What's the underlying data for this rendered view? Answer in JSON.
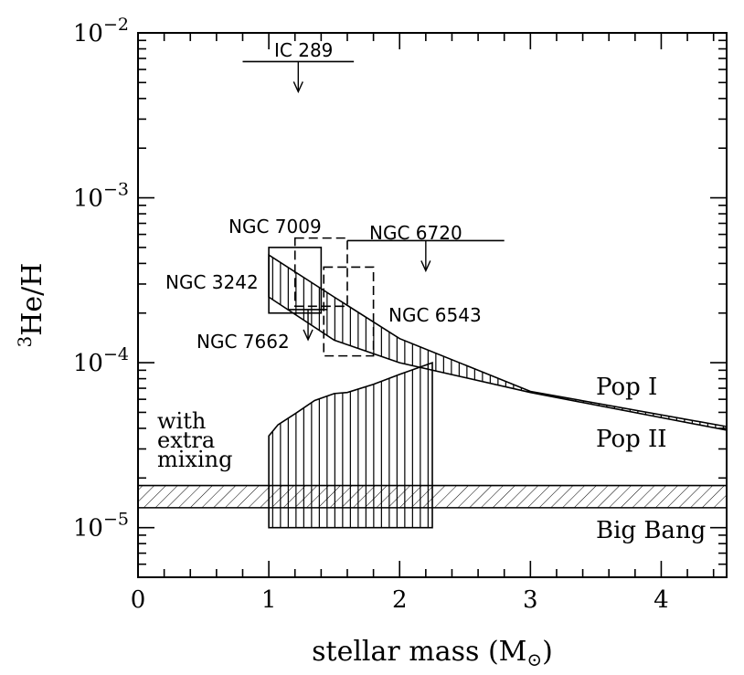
{
  "chart_data": {
    "type": "line",
    "xlabel": "stellar mass (M",
    "xlabel_sub": "⊙",
    "xlabel_close": ")",
    "ylabel_sup": "3",
    "ylabel": "He/H",
    "xlim": [
      0,
      4.5
    ],
    "ylim": [
      5e-06,
      0.01
    ],
    "y_scale": "log",
    "x_ticks": [
      {
        "value": 0,
        "label": "0"
      },
      {
        "value": 1,
        "label": "1"
      },
      {
        "value": 2,
        "label": "2"
      },
      {
        "value": 3,
        "label": "3"
      },
      {
        "value": 4,
        "label": "4"
      }
    ],
    "y_ticks": [
      {
        "value": 1e-05,
        "base": "10",
        "exp": "−5"
      },
      {
        "value": 0.0001,
        "base": "10",
        "exp": "−4"
      },
      {
        "value": 0.001,
        "base": "10",
        "exp": "−3"
      },
      {
        "value": 0.01,
        "base": "10",
        "exp": "−2"
      }
    ],
    "bands": [
      {
        "name": "Pop I",
        "x": [
          1.0,
          1.5,
          2.0,
          3.0,
          4.5
        ],
        "upper": [
          0.00045,
          0.00025,
          0.00014,
          6.7e-05,
          4.1e-05
        ],
        "lower": [
          0.00025,
          0.000137,
          0.0001,
          6.6e-05,
          3.9e-05
        ],
        "hatch": "vertical"
      },
      {
        "name": "with extra mixing",
        "x": [
          1.0,
          1.07,
          1.2,
          1.35,
          1.5,
          1.6,
          1.8,
          2.0,
          2.25
        ],
        "upper": [
          3.6e-05,
          4.2e-05,
          4.9e-05,
          5.9e-05,
          6.5e-05,
          6.6e-05,
          7.4e-05,
          8.5e-05,
          0.0001
        ],
        "lower": [
          1e-05,
          1e-05,
          1e-05,
          1e-05,
          1e-05,
          1e-05,
          1e-05,
          1e-05,
          1e-05
        ],
        "hatch": "vertical"
      },
      {
        "name": "Big Bang",
        "x": [
          0,
          4.5
        ],
        "upper": [
          1.8e-05,
          1.8e-05
        ],
        "lower": [
          1.32e-05,
          1.32e-05
        ],
        "hatch": "diagonal"
      }
    ],
    "objects": [
      {
        "name": "IC 289",
        "type": "upper-limit",
        "xmin": 0.8,
        "xmax": 1.65,
        "y": 0.0067
      },
      {
        "name": "NGC 6720",
        "type": "upper-limit",
        "xmin": 1.6,
        "xmax": 2.8,
        "y": 0.00055
      },
      {
        "name": "NGC 7662",
        "type": "upper-limit",
        "xmin": 1.15,
        "xmax": 1.45,
        "y": 0.00021
      },
      {
        "name": "NGC 3242",
        "type": "box",
        "xmin": 1.0,
        "xmax": 1.4,
        "ymin": 0.0002,
        "ymax": 0.0005
      },
      {
        "name": "NGC 7009",
        "type": "dashed-box",
        "xmin": 1.2,
        "xmax": 1.6,
        "ymin": 0.00022,
        "ymax": 0.00057
      },
      {
        "name": "NGC 6543",
        "type": "dashed-box",
        "xmin": 1.42,
        "xmax": 1.8,
        "ymin": 0.00011,
        "ymax": 0.00038
      }
    ],
    "annotations": [
      {
        "id": "ic289",
        "text": "IC 289"
      },
      {
        "id": "ngc7009",
        "text": "NGC 7009"
      },
      {
        "id": "ngc6720",
        "text": "NGC 6720"
      },
      {
        "id": "ngc3242",
        "text": "NGC 3242"
      },
      {
        "id": "ngc6543",
        "text": "NGC 6543"
      },
      {
        "id": "ngc7662",
        "text": "NGC 7662"
      },
      {
        "id": "pop1",
        "text": "Pop I"
      },
      {
        "id": "pop2",
        "text": "Pop II"
      },
      {
        "id": "mix1",
        "text": "with"
      },
      {
        "id": "mix2",
        "text": "extra"
      },
      {
        "id": "mix3",
        "text": "mixing"
      },
      {
        "id": "bigbang",
        "text": "Big Bang"
      }
    ]
  }
}
